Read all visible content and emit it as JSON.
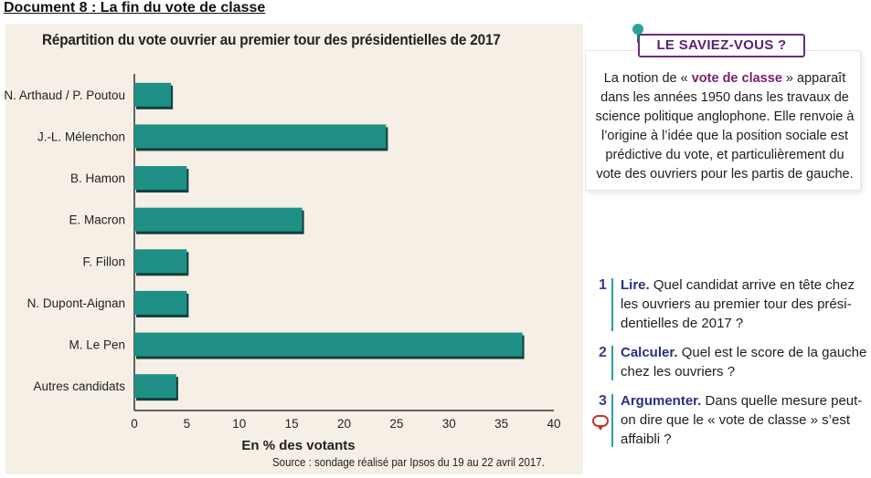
{
  "document": {
    "title": "Document 8 : La fin du vote de classe"
  },
  "chart_data": {
    "type": "bar",
    "orientation": "horizontal",
    "title": "Répartition du vote ouvrier au premier tour des présidentielles de 2017",
    "xlabel": "En % des votants",
    "ylabel": "",
    "categories": [
      "N. Arthaud / P. Poutou",
      "J.-L. Mélenchon",
      "B. Hamon",
      "E. Macron",
      "F. Fillon",
      "N. Dupont-Aignan",
      "M. Le Pen",
      "Autres candidats"
    ],
    "values": [
      3.5,
      24,
      5,
      16,
      5,
      5,
      37,
      4
    ],
    "xlim": [
      0,
      40
    ],
    "xticks": [
      "0",
      "5",
      "10",
      "15",
      "20",
      "25",
      "30",
      "35",
      "40"
    ],
    "bar_color": "#1f8f86",
    "bar_shadow_color": "#12403d",
    "grid": false,
    "source": "Source : sondage réalisé par Ipsos du 19 au 22 avril 2017."
  },
  "saviez_vous": {
    "banner": "LE SAVIEZ-VOUS ?",
    "text_before": "La notion de « ",
    "highlight": "vote de classe",
    "text_after": " » apparaît dans les années 1950 dans les travaux de science politique anglophone. Elle renvoie à l’origine à l’idée que la position sociale est prédictive du vote, et particulièrement du vote des ouvriers pour les partis de gauche."
  },
  "questions": [
    {
      "num": "1",
      "keyword": "Lire.",
      "text": "Quel candidat arrive en tête chez les ouvriers au premier tour des prési-dentielles de 2017 ?"
    },
    {
      "num": "2",
      "keyword": "Calculer.",
      "text": "Quel est le score de la gauche chez les ouvriers ?"
    },
    {
      "num": "3",
      "keyword": "Argumenter.",
      "text": "Dans quelle mesure peut-on dire que le « vote de classe » s’est affaibli ?"
    }
  ],
  "colors": {
    "accent_teal": "#2aa39b",
    "question_blue": "#2b2f82",
    "purple": "#5c1f74"
  },
  "icons": {
    "pin": "pin-icon",
    "speech": "speech-bubble-icon"
  }
}
